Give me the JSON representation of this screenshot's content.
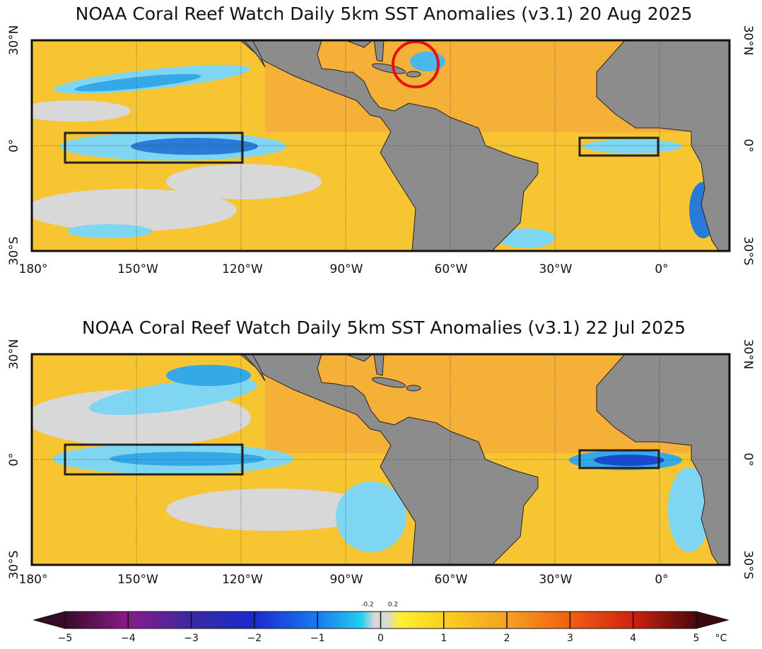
{
  "panels": [
    {
      "title": "NOAA Coral Reef Watch Daily 5km SST Anomalies  (v3.1)   20 Aug 2025",
      "lat_labels_left": [
        "30°N",
        "0°",
        "30°S"
      ],
      "lat_labels_right": [
        "30°N",
        "0°",
        "30°S"
      ],
      "lon_labels": [
        "180°",
        "150°W",
        "120°W",
        "90°W",
        "60°W",
        "30°W",
        "0°"
      ]
    },
    {
      "title": "NOAA Coral Reef Watch Daily 5km SST Anomalies  (v3.1)   22 Jul 2025",
      "lat_labels_left": [
        "30°N",
        "0°",
        "30°S"
      ],
      "lat_labels_right": [
        "30°N",
        "0°",
        "30°S"
      ],
      "lon_labels": [
        "180°",
        "150°W",
        "120°W",
        "90°W",
        "60°W",
        "30°W",
        "0°"
      ]
    }
  ],
  "colorbar": {
    "ticks": [
      "−5",
      "−4",
      "−3",
      "−2",
      "−1",
      "0",
      "1",
      "2",
      "3",
      "4",
      "5"
    ],
    "fine_ticks": [
      "-0.2",
      "0.2"
    ],
    "unit": "°C"
  }
}
